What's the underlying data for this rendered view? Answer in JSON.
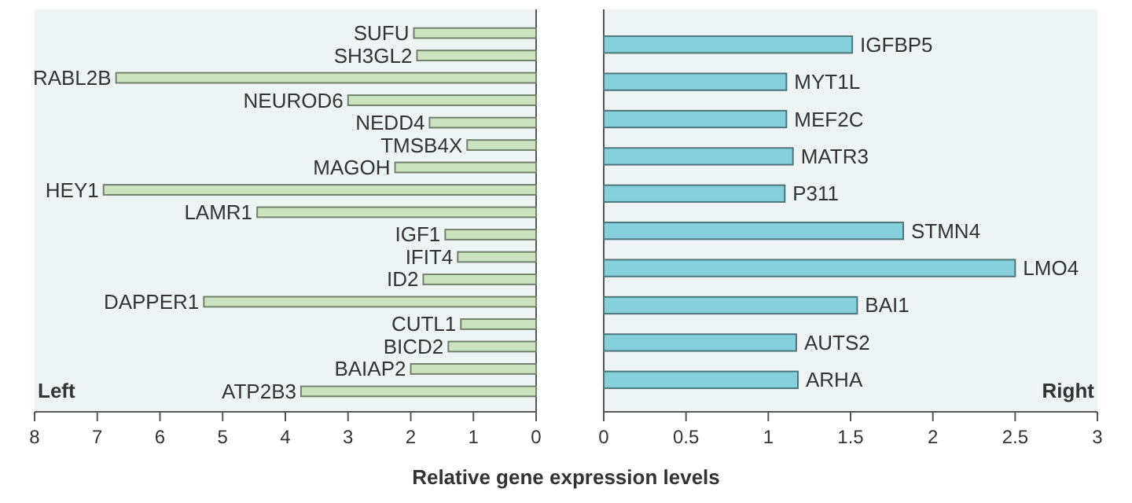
{
  "chart_data": [
    {
      "type": "bar",
      "orientation": "horizontal",
      "xlabel": "Relative gene expression levels",
      "annotations": [
        "Left"
      ],
      "categories": [
        "SUFU",
        "SH3GL2",
        "RABL2B",
        "NEUROD6",
        "NEDD4",
        "TMSB4X",
        "MAGOH",
        "HEY1",
        "LAMR1",
        "IGF1",
        "IFIT4",
        "ID2",
        "DAPPER1",
        "CUTL1",
        "BICD2",
        "BAIAP2",
        "ATP2B3"
      ],
      "values": [
        1.95,
        1.9,
        6.7,
        3.0,
        1.7,
        1.1,
        2.25,
        6.9,
        4.45,
        1.45,
        1.25,
        1.8,
        5.3,
        1.2,
        1.4,
        2.0,
        3.75
      ],
      "color": "#c9e4bf",
      "xlim": [
        8,
        0
      ],
      "xticks": [
        8,
        7,
        6,
        5,
        4,
        3,
        2,
        1,
        0
      ]
    },
    {
      "type": "bar",
      "orientation": "horizontal",
      "annotations": [
        "Right"
      ],
      "categories": [
        "IGFBP5",
        "MYT1L",
        "MEF2C",
        "MATR3",
        "P311",
        "STMN4",
        "LMO4",
        "BAI1",
        "AUTS2",
        "ARHA"
      ],
      "values": [
        1.51,
        1.11,
        1.11,
        1.15,
        1.1,
        1.82,
        2.5,
        1.54,
        1.17,
        1.18
      ],
      "color": "#86d0dc",
      "xlim": [
        0,
        3
      ],
      "xticks": [
        0,
        0.5,
        1,
        1.5,
        2,
        2.5,
        3
      ]
    }
  ]
}
